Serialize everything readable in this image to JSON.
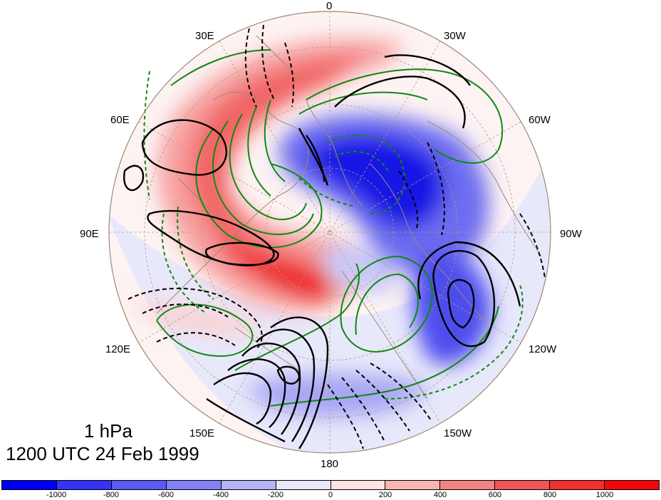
{
  "map": {
    "projection": "north-polar-stereographic",
    "longitude_labels": {
      "lon_0": "0",
      "lon_30e": "30E",
      "lon_30w": "30W",
      "lon_60e": "60E",
      "lon_60w": "60W",
      "lon_90e": "90E",
      "lon_90w": "90W",
      "lon_120e": "120E",
      "lon_120w": "120W",
      "lon_150e": "150E",
      "lon_150w": "150W",
      "lon_180": "180"
    },
    "shading_colors": {
      "strong_positive": "#f01010",
      "positive": "#f66666",
      "weak_positive": "#fde3e3",
      "weak_negative": "#e8e8fb",
      "negative": "#7c7cf0",
      "strong_negative": "#1414e6"
    },
    "contour_colors": {
      "black": "#000000",
      "green": "#118811",
      "coastline": "#9b8a78"
    }
  },
  "caption": {
    "level": "1 hPa",
    "time": "1200 UTC 24 Feb 1999"
  },
  "colorbar": {
    "colors": [
      "#0000f0",
      "#3434f2",
      "#5a5af4",
      "#8282f6",
      "#b4b4f8",
      "#e8e8fc",
      "#fde4e4",
      "#f9b4b4",
      "#f48484",
      "#f05656",
      "#ee3030",
      "#f00808"
    ],
    "tick_labels": [
      "-1000",
      "-800",
      "-600",
      "-400",
      "-200",
      "0",
      "200",
      "400",
      "600",
      "800",
      "1000"
    ]
  }
}
